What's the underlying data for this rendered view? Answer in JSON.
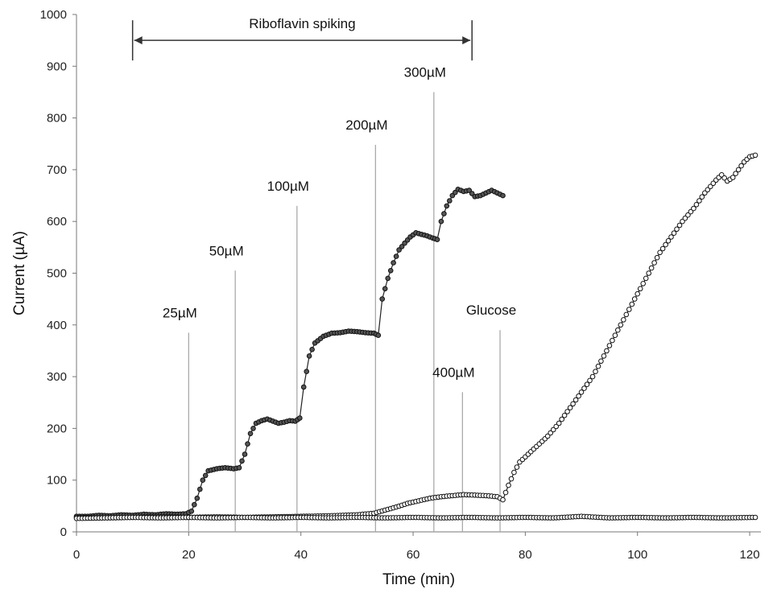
{
  "chart_data": {
    "type": "scatter",
    "title": "",
    "xlabel": "Time (min)",
    "ylabel": "Current (µA)",
    "xlim": [
      0,
      122
    ],
    "ylim": [
      0,
      1000
    ],
    "x_ticks": [
      0,
      20,
      40,
      60,
      80,
      100,
      120
    ],
    "y_ticks": [
      0,
      100,
      200,
      300,
      400,
      500,
      600,
      700,
      800,
      900,
      1000
    ],
    "grid": false,
    "legend": "none",
    "series": [
      {
        "marker": "dark-circle",
        "line": true,
        "points": [
          [
            0,
            30
          ],
          [
            2,
            30
          ],
          [
            4,
            32
          ],
          [
            6,
            31
          ],
          [
            8,
            33
          ],
          [
            10,
            32
          ],
          [
            12,
            34
          ],
          [
            14,
            33
          ],
          [
            16,
            35
          ],
          [
            18,
            34
          ],
          [
            19.5,
            35
          ],
          [
            20.5,
            40
          ],
          [
            21.5,
            65
          ],
          [
            22.5,
            100
          ],
          [
            23.5,
            118
          ],
          [
            25,
            122
          ],
          [
            26.5,
            124
          ],
          [
            28,
            122
          ],
          [
            29,
            124
          ],
          [
            30,
            150
          ],
          [
            31,
            190
          ],
          [
            32,
            210
          ],
          [
            33,
            215
          ],
          [
            34,
            218
          ],
          [
            35,
            214
          ],
          [
            36,
            210
          ],
          [
            37,
            212
          ],
          [
            38,
            215
          ],
          [
            39,
            214
          ],
          [
            39.8,
            220
          ],
          [
            40.5,
            280
          ],
          [
            41.5,
            340
          ],
          [
            42.5,
            365
          ],
          [
            44,
            378
          ],
          [
            45.5,
            384
          ],
          [
            47,
            385
          ],
          [
            48.5,
            388
          ],
          [
            50,
            387
          ],
          [
            51.5,
            385
          ],
          [
            53,
            384
          ],
          [
            53.8,
            380
          ],
          [
            54.5,
            450
          ],
          [
            55.5,
            490
          ],
          [
            56.5,
            520
          ],
          [
            57.5,
            545
          ],
          [
            58.5,
            558
          ],
          [
            59.5,
            570
          ],
          [
            60.5,
            578
          ],
          [
            61.5,
            575
          ],
          [
            62.5,
            572
          ],
          [
            63.5,
            568
          ],
          [
            64.3,
            565
          ],
          [
            65,
            600
          ],
          [
            66,
            630
          ],
          [
            67,
            650
          ],
          [
            68,
            662
          ],
          [
            69,
            658
          ],
          [
            70,
            660
          ],
          [
            71,
            648
          ],
          [
            72,
            650
          ],
          [
            73,
            655
          ],
          [
            74,
            660
          ],
          [
            75,
            655
          ],
          [
            76,
            650
          ]
        ]
      },
      {
        "marker": "open-circle",
        "line": true,
        "points": [
          [
            0,
            28
          ],
          [
            5,
            27
          ],
          [
            10,
            28
          ],
          [
            15,
            29
          ],
          [
            20,
            28
          ],
          [
            25,
            29
          ],
          [
            30,
            28
          ],
          [
            35,
            29
          ],
          [
            40,
            30
          ],
          [
            45,
            31
          ],
          [
            50,
            33
          ],
          [
            53,
            36
          ],
          [
            55,
            42
          ],
          [
            57,
            48
          ],
          [
            59,
            55
          ],
          [
            61,
            60
          ],
          [
            63,
            65
          ],
          [
            65,
            68
          ],
          [
            67,
            70
          ],
          [
            69,
            72
          ],
          [
            71,
            71
          ],
          [
            73,
            70
          ],
          [
            75,
            68
          ],
          [
            76,
            62
          ],
          [
            77,
            90
          ],
          [
            78,
            115
          ],
          [
            79,
            135
          ],
          [
            80,
            145
          ],
          [
            82,
            165
          ],
          [
            84,
            185
          ],
          [
            86,
            210
          ],
          [
            88,
            240
          ],
          [
            90,
            270
          ],
          [
            92,
            300
          ],
          [
            94,
            340
          ],
          [
            96,
            380
          ],
          [
            98,
            420
          ],
          [
            100,
            460
          ],
          [
            102,
            500
          ],
          [
            104,
            540
          ],
          [
            106,
            570
          ],
          [
            108,
            600
          ],
          [
            110,
            625
          ],
          [
            112,
            655
          ],
          [
            114,
            680
          ],
          [
            115,
            690
          ],
          [
            116,
            678
          ],
          [
            117,
            685
          ],
          [
            118,
            700
          ],
          [
            119,
            715
          ],
          [
            120,
            725
          ],
          [
            121,
            728
          ]
        ]
      },
      {
        "marker": "open-circle",
        "line": true,
        "points": [
          [
            0,
            26
          ],
          [
            5,
            27
          ],
          [
            10,
            28
          ],
          [
            15,
            27
          ],
          [
            20,
            28
          ],
          [
            25,
            27
          ],
          [
            30,
            28
          ],
          [
            35,
            27
          ],
          [
            40,
            28
          ],
          [
            45,
            27
          ],
          [
            50,
            28
          ],
          [
            55,
            27
          ],
          [
            60,
            28
          ],
          [
            65,
            27
          ],
          [
            70,
            28
          ],
          [
            75,
            27
          ],
          [
            80,
            28
          ],
          [
            85,
            27
          ],
          [
            90,
            30
          ],
          [
            95,
            27
          ],
          [
            100,
            28
          ],
          [
            105,
            27
          ],
          [
            110,
            28
          ],
          [
            115,
            27
          ],
          [
            121,
            28
          ]
        ]
      }
    ],
    "markers": [
      {
        "label": "25µM",
        "x": 20,
        "y_top": 385
      },
      {
        "label": "50µM",
        "x": 28.3,
        "y_top": 505
      },
      {
        "label": "100µM",
        "x": 39.3,
        "y_top": 630
      },
      {
        "label": "200µM",
        "x": 53.3,
        "y_top": 748
      },
      {
        "label": "300µM",
        "x": 63.7,
        "y_top": 850
      },
      {
        "label": "400µM",
        "x": 68.8,
        "y_top": 270
      },
      {
        "label": "Glucose",
        "x": 75.5,
        "y_top": 390
      }
    ],
    "span_annotation": {
      "label": "Riboflavin spiking",
      "x_start": 10,
      "x_end": 70.5,
      "y": 950
    }
  }
}
